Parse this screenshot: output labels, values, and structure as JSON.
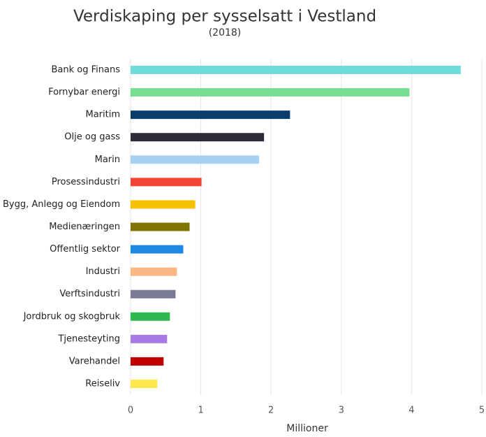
{
  "chart_data": {
    "type": "barh",
    "title": "Verdiskaping per sysselsatt i Vestland",
    "subtitle": "(2018)",
    "x_label": "Millioner",
    "categories": [
      "Bank og Finans",
      "Fornybar energi",
      "Maritim",
      "Olje og gass",
      "Marin",
      "Prosessindustri",
      "Bygg, Anlegg og Eiendom",
      "Medienæringen",
      "Offentlig sektor",
      "Industri",
      "Verftsindustri",
      "Jordbruk og skogbruk",
      "Tjenesteyting",
      "Varehandel",
      "Reiseliv"
    ],
    "values": [
      4.7,
      3.97,
      2.27,
      1.9,
      1.83,
      1.01,
      0.92,
      0.84,
      0.75,
      0.66,
      0.64,
      0.56,
      0.52,
      0.47,
      0.38
    ],
    "colors": [
      "#6fdcdc",
      "#77dd91",
      "#0b3d6b",
      "#2d2d3a",
      "#a8d0f0",
      "#f44336",
      "#f7c000",
      "#7f7400",
      "#1e88e5",
      "#fbb683",
      "#7a7a96",
      "#2db84d",
      "#a77be6",
      "#c00000",
      "#fde74c"
    ],
    "xlim": [
      0,
      5
    ],
    "xticks": [
      0,
      1,
      2,
      3,
      4,
      5
    ],
    "grid": true
  }
}
